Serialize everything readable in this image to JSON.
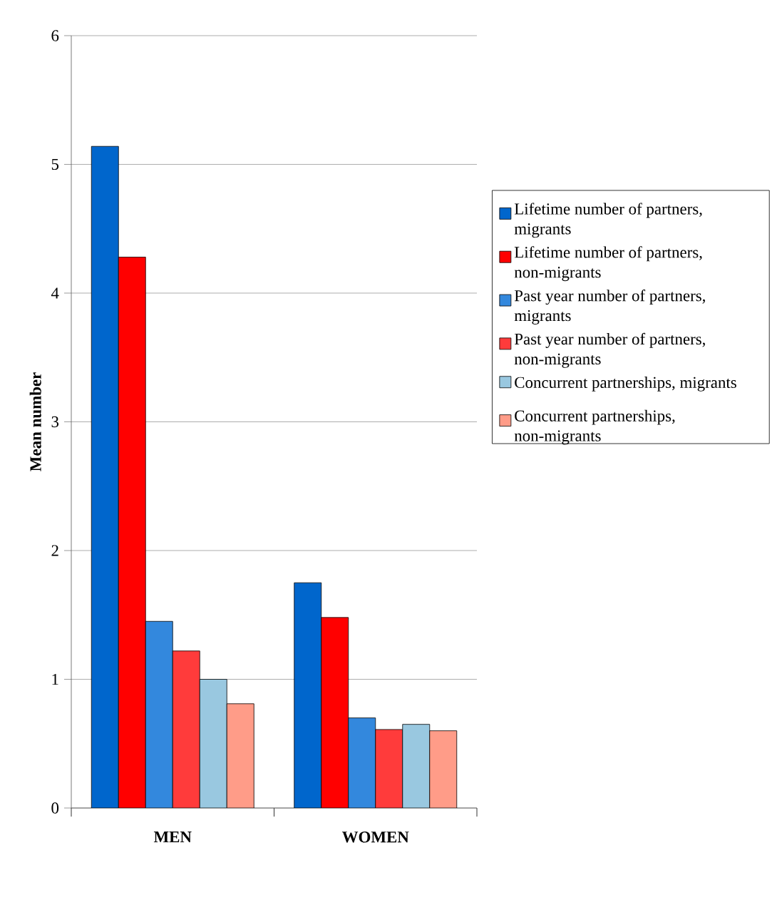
{
  "chart_data": {
    "type": "bar",
    "ylabel": "Mean number",
    "categories": [
      "MEN",
      "WOMEN"
    ],
    "series": [
      {
        "name": "Lifetime number of partners, migrants",
        "color": "#0066cc",
        "values": [
          5.14,
          1.75
        ]
      },
      {
        "name": "Lifetime number of partners, non-migrants",
        "color": "#ff0000",
        "values": [
          4.28,
          1.48
        ]
      },
      {
        "name": "Past year number of partners, migrants",
        "color": "#3388dd",
        "values": [
          1.45,
          0.7
        ]
      },
      {
        "name": "Past year number of partners, non-migrants",
        "color": "#ff3b3b",
        "values": [
          1.22,
          0.61
        ]
      },
      {
        "name": "Concurrent partnerships, migrants",
        "color": "#99c8e0",
        "values": [
          1.0,
          0.65
        ]
      },
      {
        "name": "Concurrent partnerships, non-migrants",
        "color": "#ff9c88",
        "values": [
          0.81,
          0.6
        ]
      }
    ],
    "ylim": [
      0,
      6
    ],
    "yticks": [
      0,
      1,
      2,
      3,
      4,
      5,
      6
    ],
    "grid": "y",
    "legend": "right"
  }
}
